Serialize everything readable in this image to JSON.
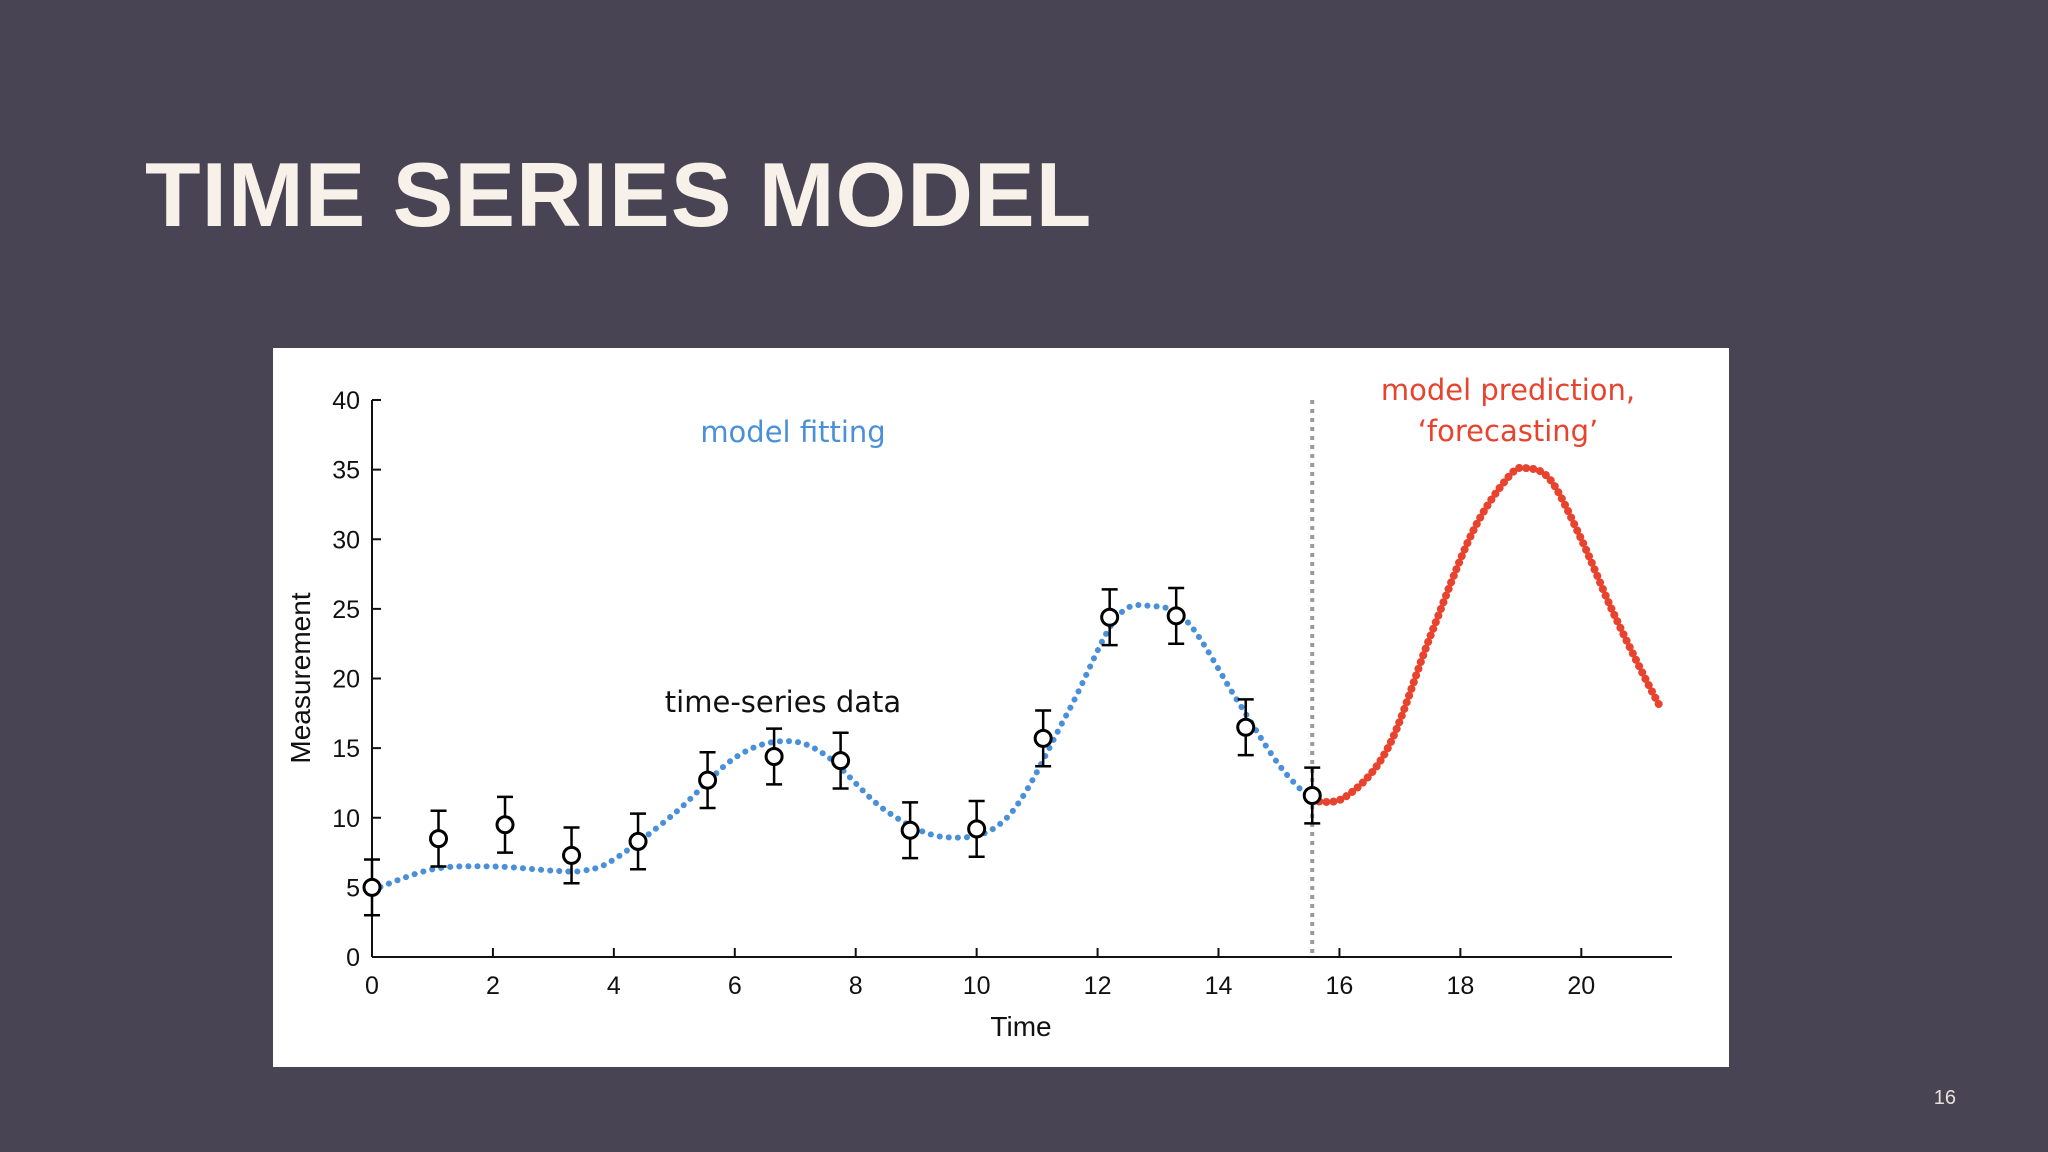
{
  "slide": {
    "title": "TIME SERIES MODEL",
    "page_number": "16"
  },
  "chart_data": {
    "type": "scatter",
    "xlabel": "Time",
    "ylabel": "Measurement",
    "xlim": [
      0,
      21.5
    ],
    "ylim": [
      0,
      40
    ],
    "x_ticks": [
      0,
      2,
      4,
      6,
      8,
      10,
      12,
      14,
      16,
      18,
      20
    ],
    "y_ticks": [
      0,
      5,
      10,
      15,
      20,
      25,
      30,
      35,
      40
    ],
    "grid": false,
    "annotations": {
      "fit_label": "model fitting",
      "data_label": "time-series data",
      "forecast_label_line1": "model prediction,",
      "forecast_label_line2": "‘forecasting’"
    },
    "divider_x": 15.55,
    "series": [
      {
        "kind": "observations",
        "color": "#000000",
        "x": [
          0,
          1.1,
          2.2,
          3.3,
          4.4,
          5.55,
          6.65,
          7.75,
          8.9,
          10.0,
          11.1,
          12.2,
          13.3,
          14.45,
          15.55
        ],
        "y": [
          5.0,
          8.5,
          9.5,
          7.3,
          8.3,
          12.7,
          14.4,
          14.1,
          9.1,
          9.2,
          15.7,
          24.4,
          24.5,
          16.5,
          11.6
        ],
        "error": 2.0
      },
      {
        "kind": "fit",
        "color": "#4a90d9",
        "x": [
          0,
          1,
          2,
          3,
          3.5,
          4,
          5,
          6,
          6.8,
          7.5,
          8.5,
          9.5,
          10.5,
          11.5,
          12.3,
          12.9,
          13.5,
          14.3,
          15.0,
          15.55
        ],
        "y": [
          4.8,
          6.3,
          6.5,
          6.2,
          6.2,
          7.0,
          10.3,
          14.3,
          15.5,
          14.5,
          10.5,
          8.6,
          10.0,
          17.5,
          24.3,
          25.2,
          24.0,
          18.5,
          13.8,
          11.2
        ]
      },
      {
        "kind": "forecast",
        "color": "#e8432e",
        "x": [
          15.55,
          16.1,
          16.8,
          17.5,
          18.2,
          18.8,
          19.1,
          19.5,
          20.0,
          20.5,
          21.0,
          21.3
        ],
        "y": [
          11.2,
          11.5,
          15.0,
          23.0,
          30.5,
          34.5,
          35.1,
          34.2,
          30.0,
          25.0,
          20.5,
          18.0
        ]
      }
    ]
  }
}
